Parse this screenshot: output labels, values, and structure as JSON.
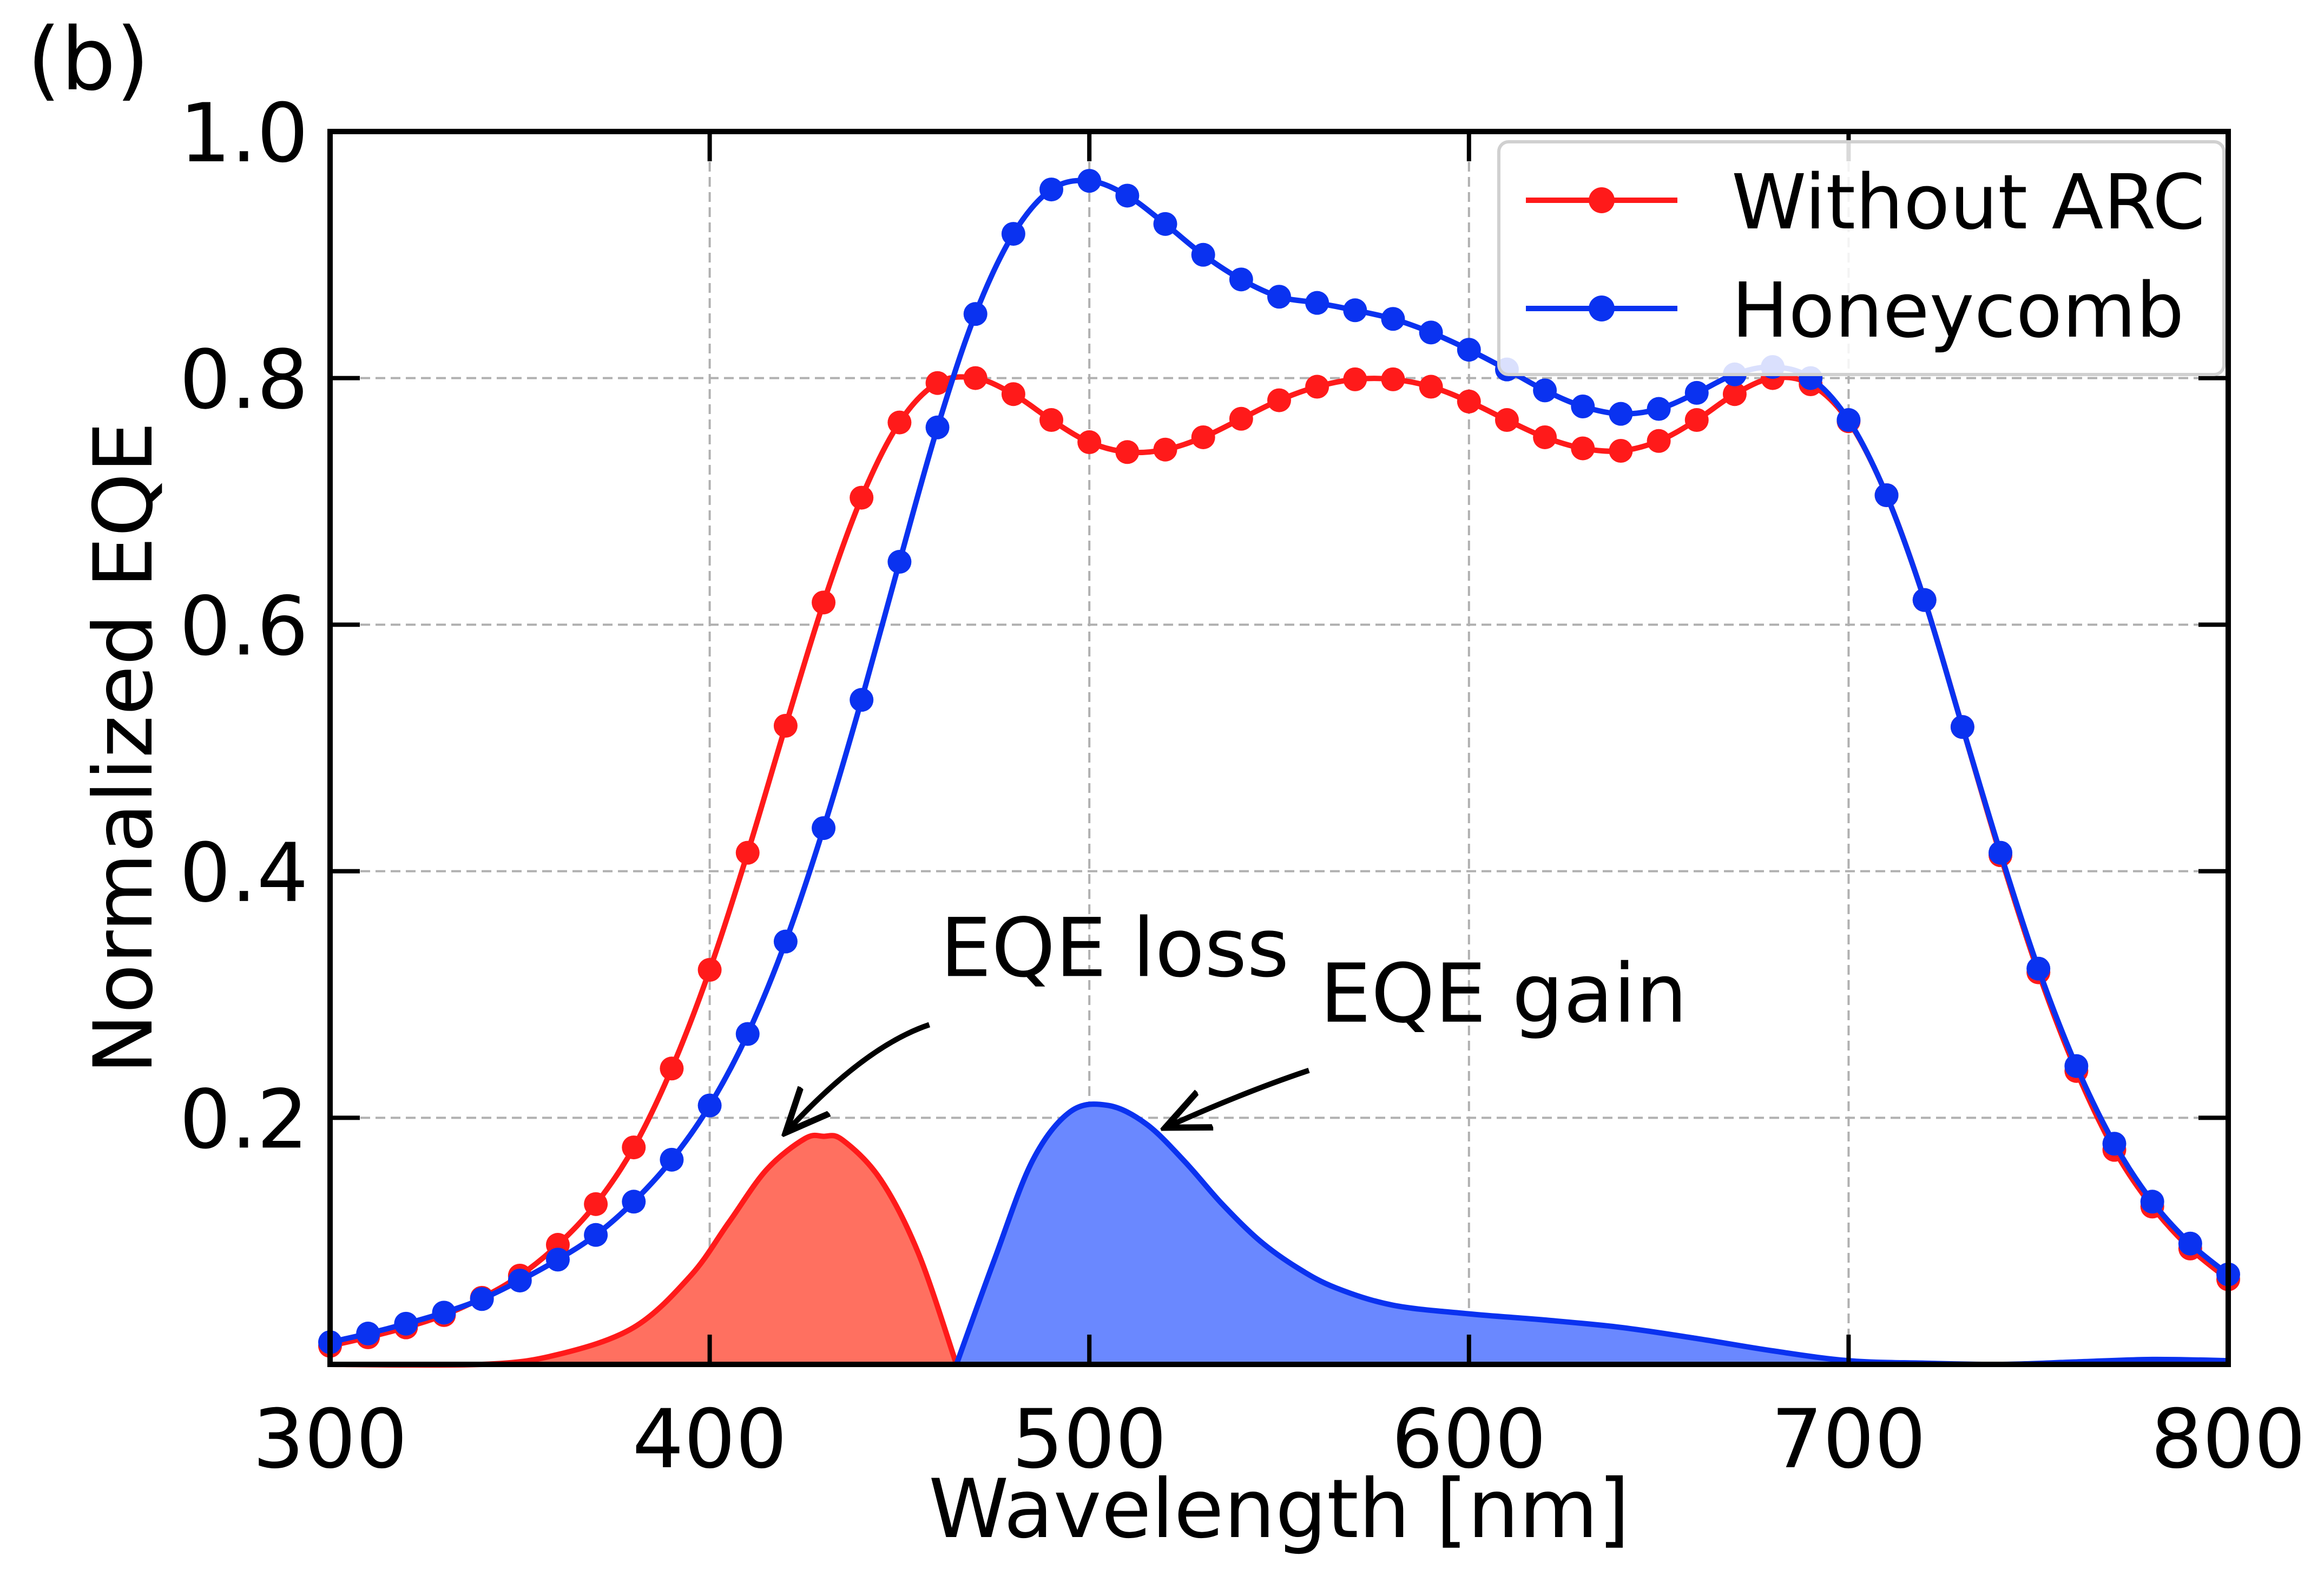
{
  "panel_label": "(b)",
  "chart_data": {
    "type": "line",
    "title": "",
    "xlabel": "Wavelength [nm]",
    "ylabel": "Normalized EQE",
    "xlim": [
      300,
      800
    ],
    "ylim": [
      0,
      1.0
    ],
    "xticks": [
      300,
      400,
      500,
      600,
      700,
      800
    ],
    "xtick_labels": [
      "300",
      "400",
      "500",
      "600",
      "700",
      "800"
    ],
    "yticks": [
      0.2,
      0.4,
      0.6,
      0.8,
      1.0
    ],
    "ytick_labels": [
      "0.2",
      "0.4",
      "0.6",
      "0.8",
      "1.0"
    ],
    "grid": true,
    "legend_position": "top-right",
    "x": [
      300,
      310,
      320,
      330,
      340,
      350,
      360,
      370,
      380,
      390,
      400,
      410,
      420,
      430,
      440,
      450,
      460,
      470,
      480,
      490,
      500,
      510,
      520,
      530,
      540,
      550,
      560,
      570,
      580,
      590,
      600,
      610,
      620,
      630,
      640,
      650,
      660,
      670,
      680,
      690,
      700,
      710,
      720,
      730,
      740,
      750,
      760,
      770,
      780,
      790,
      800
    ],
    "series": [
      {
        "name": "Without ARC",
        "color": "#ff1a1a",
        "marker": "circle",
        "values": [
          0.015,
          0.022,
          0.03,
          0.04,
          0.054,
          0.072,
          0.097,
          0.13,
          0.176,
          0.24,
          0.32,
          0.415,
          0.518,
          0.618,
          0.703,
          0.764,
          0.796,
          0.8,
          0.787,
          0.766,
          0.748,
          0.74,
          0.742,
          0.752,
          0.767,
          0.782,
          0.793,
          0.799,
          0.799,
          0.793,
          0.781,
          0.766,
          0.752,
          0.743,
          0.741,
          0.749,
          0.766,
          0.787,
          0.8,
          0.795,
          0.765,
          0.705,
          0.62,
          0.517,
          0.413,
          0.318,
          0.238,
          0.174,
          0.128,
          0.094,
          0.069
        ]
      },
      {
        "name": "Honeycomb",
        "color": "#0a32f0",
        "marker": "circle",
        "values": [
          0.018,
          0.025,
          0.033,
          0.042,
          0.053,
          0.068,
          0.085,
          0.105,
          0.132,
          0.166,
          0.21,
          0.268,
          0.343,
          0.435,
          0.539,
          0.651,
          0.76,
          0.852,
          0.917,
          0.953,
          0.96,
          0.948,
          0.925,
          0.9,
          0.88,
          0.866,
          0.861,
          0.855,
          0.848,
          0.837,
          0.823,
          0.807,
          0.79,
          0.777,
          0.771,
          0.775,
          0.788,
          0.803,
          0.809,
          0.8,
          0.766,
          0.705,
          0.62,
          0.517,
          0.415,
          0.321,
          0.242,
          0.179,
          0.132,
          0.098,
          0.073
        ]
      }
    ],
    "filled_curves": [
      {
        "label": "EQE loss",
        "color": "#ff1a1a",
        "fill": "#ff7060",
        "x": [
          300,
          340,
          360,
          380,
          395,
          405,
          415,
          425,
          430,
          435,
          445,
          455,
          465
        ],
        "values": [
          0.0,
          0.0,
          0.008,
          0.03,
          0.072,
          0.115,
          0.158,
          0.183,
          0.185,
          0.182,
          0.15,
          0.09,
          0.0
        ]
      },
      {
        "label": "EQE gain",
        "color": "#0a32f0",
        "fill": "#6a88ff",
        "x": [
          465,
          475,
          485,
          495,
          505,
          515,
          525,
          535,
          545,
          555,
          565,
          580,
          600,
          620,
          640,
          660,
          680,
          700,
          720,
          740,
          760,
          780,
          800
        ],
        "values": [
          0.0,
          0.085,
          0.165,
          0.205,
          0.21,
          0.195,
          0.165,
          0.13,
          0.1,
          0.078,
          0.062,
          0.048,
          0.041,
          0.036,
          0.03,
          0.021,
          0.011,
          0.003,
          0.001,
          0.0,
          0.002,
          0.004,
          0.003
        ]
      }
    ],
    "annotations": [
      {
        "text": "EQE loss",
        "x": 455,
        "y": 0.315,
        "arrow_to": [
          420,
          0.188
        ]
      },
      {
        "text": "EQE gain",
        "x": 555,
        "y": 0.278,
        "arrow_to": [
          520,
          0.192
        ]
      }
    ]
  }
}
